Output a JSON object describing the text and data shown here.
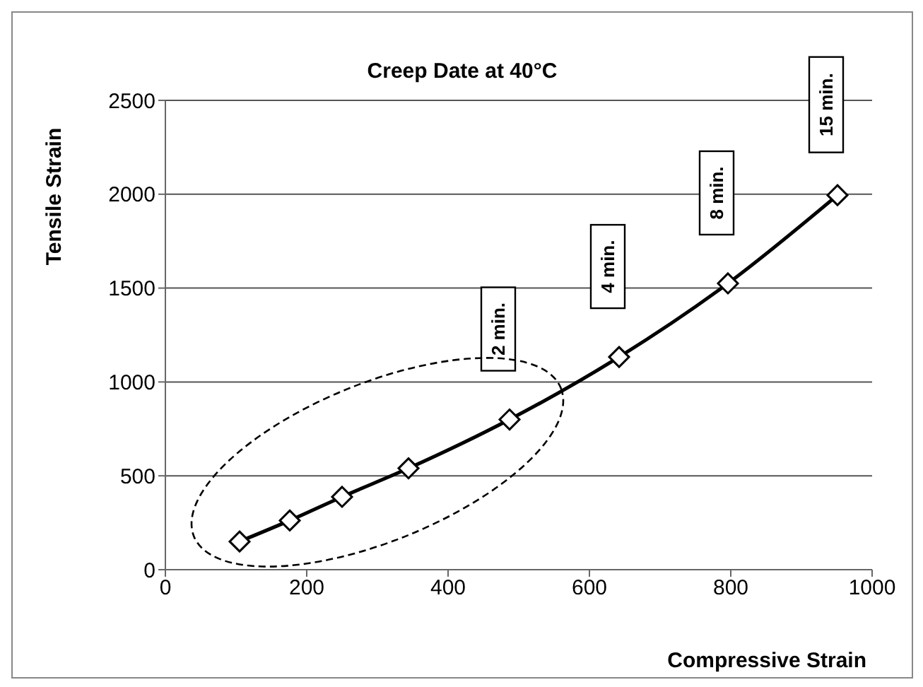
{
  "chart_data": {
    "type": "line",
    "title": "Creep Date at 40°C",
    "xlabel": "Compressive Strain",
    "ylabel": "Tensile Strain",
    "x": [
      105,
      176,
      250,
      344,
      487,
      642,
      796,
      951
    ],
    "values": [
      150,
      262,
      388,
      540,
      800,
      1133,
      1525,
      1995
    ],
    "color": "#000000",
    "marker": "diamond",
    "line_style": "solid",
    "grid": "y",
    "xlim": [
      0,
      1000
    ],
    "xticks": [
      0,
      200,
      400,
      600,
      800,
      1000
    ],
    "ylim": [
      0,
      2500
    ],
    "yticks": [
      0,
      500,
      1000,
      1500,
      2000,
      2500
    ],
    "annotations": [
      "2 min.",
      "4 min.",
      "8 min.",
      "15 min."
    ]
  }
}
